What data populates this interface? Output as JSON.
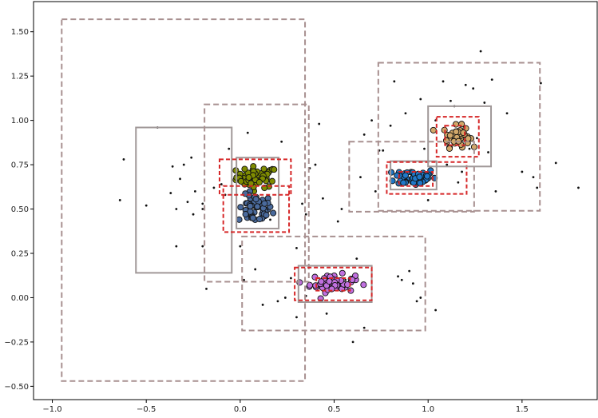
{
  "chart_data": {
    "type": "scatter",
    "title": "",
    "xlabel": "",
    "ylabel": "",
    "xlim": [
      -1.1,
      1.9
    ],
    "ylim": [
      -0.575,
      1.67
    ],
    "xticks": [
      -1.0,
      -0.5,
      0.0,
      0.5,
      1.0,
      1.5
    ],
    "xtick_labels": [
      "−1.0",
      "−0.5",
      "0.0",
      "0.5",
      "1.0",
      "1.5"
    ],
    "yticks": [
      -0.5,
      -0.25,
      0.0,
      0.25,
      0.5,
      0.75,
      1.0,
      1.25,
      1.5
    ],
    "ytick_labels": [
      "−0.50",
      "−0.25",
      "0.00",
      "0.25",
      "0.50",
      "0.75",
      "1.00",
      "1.25",
      "1.50"
    ],
    "grid": false,
    "legend": "none",
    "clusters": [
      {
        "color": "#7f8c00",
        "center": [
          0.09,
          0.68
        ],
        "spread": [
          0.055,
          0.03
        ],
        "count": 55
      },
      {
        "color": "#4a6a9c",
        "center": [
          0.08,
          0.5
        ],
        "spread": [
          0.045,
          0.04
        ],
        "count": 55
      },
      {
        "color": "#1f78c8",
        "center": [
          0.93,
          0.68
        ],
        "spread": [
          0.055,
          0.025
        ],
        "count": 55
      },
      {
        "color": "#d2a86a",
        "center": [
          1.15,
          0.91
        ],
        "spread": [
          0.035,
          0.03
        ],
        "count": 50
      },
      {
        "color": "#c070e0",
        "center": [
          0.49,
          0.08
        ],
        "spread": [
          0.06,
          0.025
        ],
        "count": 60
      }
    ],
    "noise_points": [
      [
        -0.62,
        0.78
      ],
      [
        -0.64,
        0.55
      ],
      [
        -0.5,
        0.52
      ],
      [
        -0.44,
        0.96
      ],
      [
        -0.36,
        0.74
      ],
      [
        -0.34,
        0.5
      ],
      [
        -0.32,
        0.67
      ],
      [
        -0.3,
        0.75
      ],
      [
        -0.28,
        0.54
      ],
      [
        -0.26,
        0.79
      ],
      [
        -0.25,
        0.47
      ],
      [
        -0.24,
        0.6
      ],
      [
        -0.2,
        0.5
      ],
      [
        -0.2,
        0.53
      ],
      [
        -0.37,
        0.59
      ],
      [
        -0.34,
        0.29
      ],
      [
        -0.2,
        0.29
      ],
      [
        -0.18,
        0.05
      ],
      [
        -0.14,
        0.62
      ],
      [
        -0.1,
        0.64
      ],
      [
        -0.08,
        0.58
      ],
      [
        -0.06,
        0.84
      ],
      [
        0.0,
        0.29
      ],
      [
        0.02,
        0.1
      ],
      [
        0.04,
        0.93
      ],
      [
        0.08,
        0.16
      ],
      [
        0.12,
        -0.04
      ],
      [
        0.2,
        -0.02
      ],
      [
        0.22,
        0.88
      ],
      [
        0.24,
        0.0
      ],
      [
        0.27,
        0.11
      ],
      [
        0.3,
        0.28
      ],
      [
        0.33,
        0.53
      ],
      [
        0.35,
        0.47
      ],
      [
        0.37,
        0.73
      ],
      [
        0.4,
        0.75
      ],
      [
        0.42,
        0.98
      ],
      [
        0.44,
        0.56
      ],
      [
        0.46,
        -0.09
      ],
      [
        0.52,
        0.43
      ],
      [
        0.54,
        0.5
      ],
      [
        0.56,
        0.1
      ],
      [
        0.6,
        -0.25
      ],
      [
        0.62,
        0.22
      ],
      [
        0.64,
        0.68
      ],
      [
        0.66,
        0.92
      ],
      [
        0.7,
        1.0
      ],
      [
        0.72,
        0.6
      ],
      [
        0.74,
        0.83
      ],
      [
        0.76,
        0.83
      ],
      [
        0.8,
        0.97
      ],
      [
        0.82,
        1.22
      ],
      [
        0.84,
        0.12
      ],
      [
        0.86,
        0.1
      ],
      [
        0.88,
        1.04
      ],
      [
        0.92,
        0.08
      ],
      [
        0.94,
        -0.02
      ],
      [
        0.96,
        1.12
      ],
      [
        0.98,
        0.84
      ],
      [
        1.0,
        0.55
      ],
      [
        1.04,
        1.0
      ],
      [
        1.08,
        1.22
      ],
      [
        1.1,
        0.75
      ],
      [
        1.12,
        1.11
      ],
      [
        1.14,
        1.08
      ],
      [
        1.16,
        0.65
      ],
      [
        1.18,
        0.71
      ],
      [
        1.2,
        1.2
      ],
      [
        1.22,
        0.84
      ],
      [
        1.24,
        1.18
      ],
      [
        1.26,
        0.9
      ],
      [
        1.28,
        1.39
      ],
      [
        1.3,
        1.1
      ],
      [
        1.32,
        0.82
      ],
      [
        1.34,
        1.23
      ],
      [
        1.36,
        0.6
      ],
      [
        1.42,
        1.04
      ],
      [
        1.5,
        0.71
      ],
      [
        1.56,
        0.68
      ],
      [
        1.58,
        0.62
      ],
      [
        1.6,
        1.21
      ],
      [
        1.68,
        0.76
      ],
      [
        1.8,
        0.62
      ],
      [
        1.04,
        -0.07
      ],
      [
        0.3,
        -0.11
      ],
      [
        0.66,
        -0.17
      ],
      [
        0.96,
        0.0
      ],
      [
        0.9,
        0.15
      ],
      [
        0.16,
        0.44
      ],
      [
        0.35,
        0.01
      ]
    ],
    "boxes": [
      {
        "style": "dashed",
        "color": "#a89090",
        "x0": -0.95,
        "y0": -0.47,
        "x1": 0.345,
        "y1": 1.57
      },
      {
        "style": "solid",
        "color": "#a09898",
        "x0": -0.555,
        "y0": 0.14,
        "x1": -0.045,
        "y1": 0.96
      },
      {
        "style": "dashed",
        "color": "#a89090",
        "x0": -0.19,
        "y0": 0.09,
        "x1": 0.365,
        "y1": 1.09
      },
      {
        "style": "solid",
        "color": "#a09898",
        "x0": -0.02,
        "y0": 0.39,
        "x1": 0.205,
        "y1": 0.79
      },
      {
        "style": "dashed",
        "color": "#d62728",
        "x0": -0.11,
        "y0": 0.58,
        "x1": 0.27,
        "y1": 0.78
      },
      {
        "style": "dashed",
        "color": "#d62728",
        "x0": -0.09,
        "y0": 0.37,
        "x1": 0.26,
        "y1": 0.63
      },
      {
        "style": "dashed",
        "color": "#a89090",
        "x0": 0.01,
        "y0": -0.185,
        "x1": 0.985,
        "y1": 0.345
      },
      {
        "style": "solid",
        "color": "#a09898",
        "x0": 0.31,
        "y0": -0.025,
        "x1": 0.7,
        "y1": 0.18
      },
      {
        "style": "dashed",
        "color": "#d62728",
        "x0": 0.29,
        "y0": -0.015,
        "x1": 0.7,
        "y1": 0.17
      },
      {
        "style": "dashed",
        "color": "#d62728",
        "x0": 0.405,
        "y0": 0.04,
        "x1": 0.585,
        "y1": 0.11
      },
      {
        "style": "dashed",
        "color": "#a89090",
        "x0": 0.58,
        "y0": 0.485,
        "x1": 1.245,
        "y1": 0.88
      },
      {
        "style": "dashed",
        "color": "#a89090",
        "x0": 0.735,
        "y0": 0.49,
        "x1": 1.595,
        "y1": 1.325
      },
      {
        "style": "solid",
        "color": "#a09898",
        "x0": 0.8,
        "y0": 0.61,
        "x1": 1.045,
        "y1": 0.77
      },
      {
        "style": "dashed",
        "color": "#d62728",
        "x0": 0.78,
        "y0": 0.585,
        "x1": 1.205,
        "y1": 0.765
      },
      {
        "style": "dashed",
        "color": "#d62728",
        "x0": 0.845,
        "y0": 0.63,
        "x1": 1.025,
        "y1": 0.71
      },
      {
        "style": "solid",
        "color": "#a09898",
        "x0": 1.0,
        "y0": 0.74,
        "x1": 1.335,
        "y1": 1.08
      },
      {
        "style": "dashed",
        "color": "#d62728",
        "x0": 1.045,
        "y0": 0.795,
        "x1": 1.27,
        "y1": 1.02
      },
      {
        "style": "dashed",
        "color": "#d62728",
        "x0": 1.09,
        "y0": 0.86,
        "x1": 1.195,
        "y1": 0.97
      }
    ]
  }
}
